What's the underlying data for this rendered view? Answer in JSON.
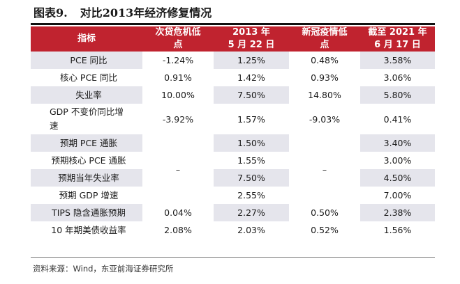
{
  "title": {
    "number": "图表9.",
    "text": "对比2013年经济修复情况"
  },
  "table": {
    "headers": {
      "col1": {
        "line1": "指标",
        "line2": ""
      },
      "col2": {
        "line1": "次贷危机低",
        "line2": "点"
      },
      "col3": {
        "line1": "2013 年",
        "line2": "5 月 22 日"
      },
      "col4": {
        "line1": "新冠疫情低",
        "line2": "点"
      },
      "col5": {
        "line1": "截至 2021 年",
        "line2": "6 月 17 日"
      }
    },
    "rows": [
      {
        "label": "PCE 同比",
        "c2": "-1.24%",
        "c3": "1.25%",
        "c4": "0.48%",
        "c5": "3.58%"
      },
      {
        "label": "核心 PCE 同比",
        "c2": "0.91%",
        "c3": "1.42%",
        "c4": "0.93%",
        "c5": "3.06%"
      },
      {
        "label": "失业率",
        "c2": "10.00%",
        "c3": "7.50%",
        "c4": "14.80%",
        "c5": "5.80%"
      },
      {
        "label": "GDP 不变价同比增速",
        "c2": "-3.92%",
        "c3": "1.57%",
        "c4": "-9.03%",
        "c5": "0.41%"
      },
      {
        "label": "预期 PCE 通胀",
        "c3": "1.50%",
        "c5": "3.40%"
      },
      {
        "label": "预期核心 PCE 通胀",
        "c3": "1.55%",
        "c5": "3.00%"
      },
      {
        "label": "预期当年失业率",
        "c3": "7.50%",
        "c5": "4.50%"
      },
      {
        "label": "预期 GDP 增速",
        "c3": "2.55%",
        "c5": "7.00%"
      },
      {
        "label": "TIPS 隐含通胀预期",
        "c2": "0.04%",
        "c3": "2.27%",
        "c4": "0.50%",
        "c5": "2.38%"
      },
      {
        "label": "10 年期美债收益率",
        "c2": "2.08%",
        "c3": "2.03%",
        "c4": "0.52%",
        "c5": "1.56%"
      }
    ],
    "merged_placeholder": "–"
  },
  "source": "资料来源：Wind，东亚前海证券研究所",
  "colors": {
    "header_bg": "#c0232f",
    "shade": "#e5e5ec"
  }
}
